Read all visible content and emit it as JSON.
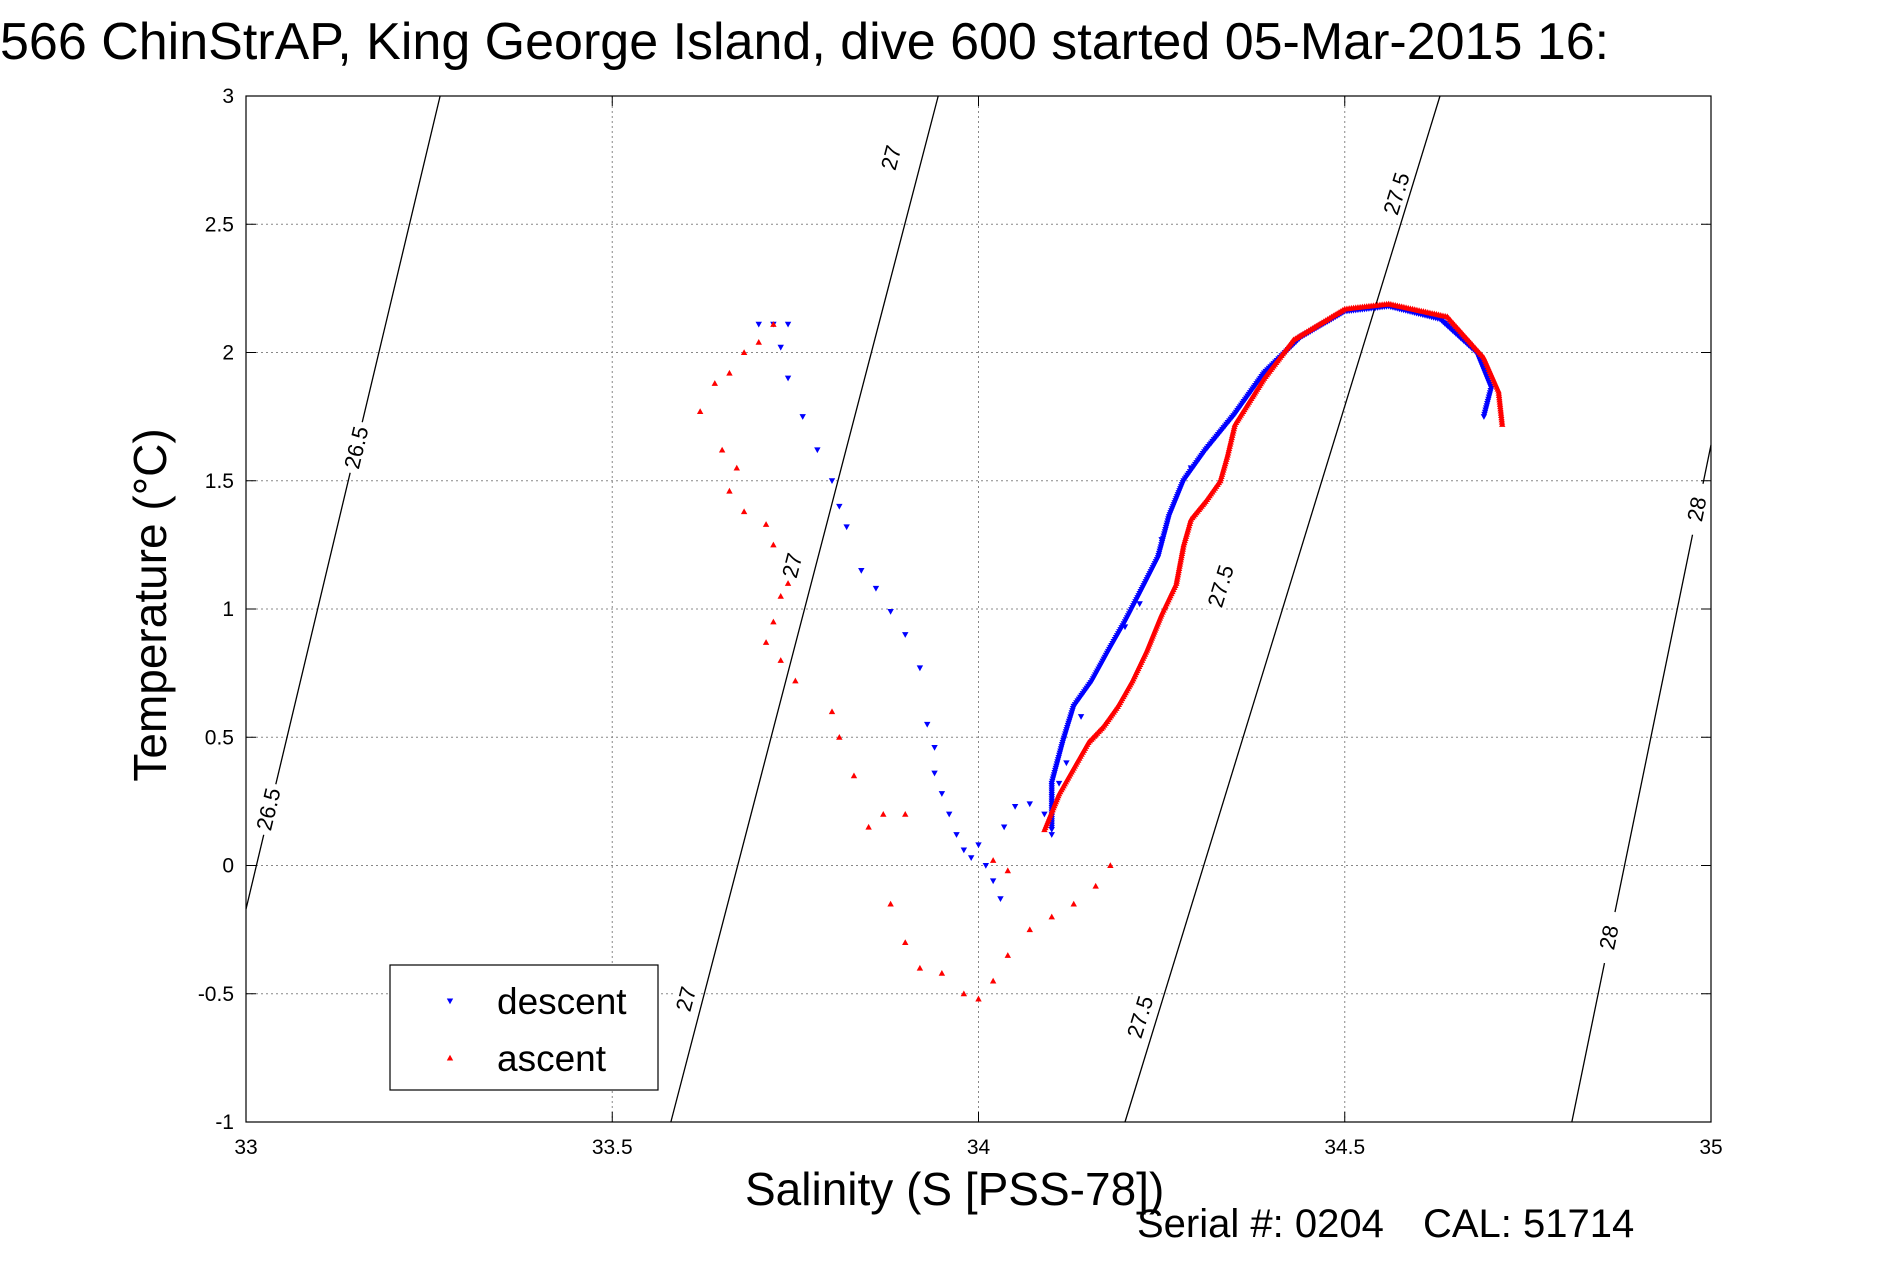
{
  "chart_data": {
    "type": "scatter",
    "title": "566 ChinStrAP, King George Island, dive 600 started 05-Mar-2015 16:",
    "xlabel": "Salinity (S [PSS-78])",
    "ylabel": "Temperature (°C)",
    "xlim": [
      33,
      35
    ],
    "ylim": [
      -1,
      3
    ],
    "xticks": [
      "33",
      "33.5",
      "34",
      "34.5",
      "35"
    ],
    "yticks": [
      "-1",
      "-0.5",
      "0",
      "0.5",
      "1",
      "1.5",
      "2",
      "2.5",
      "3"
    ],
    "grid": true,
    "legend": {
      "position": "bottom-left"
    },
    "contours": [
      {
        "label": "26.5",
        "line": [
          [
            33.0,
            -0.17
          ],
          [
            33.265,
            3.0
          ]
        ],
        "labels_at": [
          [
            33.15,
            1.63
          ],
          [
            33.03,
            0.22
          ]
        ]
      },
      {
        "label": "27",
        "line": [
          [
            33.58,
            -1.0
          ],
          [
            33.945,
            3.0
          ]
        ],
        "labels_at": [
          [
            33.88,
            2.76
          ],
          [
            33.745,
            1.17
          ],
          [
            33.6,
            -0.52
          ]
        ]
      },
      {
        "label": "27.5",
        "line": [
          [
            34.2,
            -1.0
          ],
          [
            34.63,
            3.0
          ]
        ],
        "labels_at": [
          [
            34.57,
            2.62
          ],
          [
            34.33,
            1.09
          ],
          [
            34.22,
            -0.59
          ]
        ]
      },
      {
        "label": "28",
        "line": [
          [
            34.81,
            -1.0
          ],
          [
            35.0,
            1.64
          ]
        ],
        "labels_at": [
          [
            34.98,
            1.39
          ],
          [
            34.86,
            -0.28
          ]
        ]
      }
    ],
    "series": [
      {
        "name": "descent",
        "color": "#0000ff",
        "marker": "triangle-down",
        "curve": [
          [
            34.69,
            1.75
          ],
          [
            34.7,
            1.86
          ],
          [
            34.68,
            2.0
          ],
          [
            34.63,
            2.13
          ],
          [
            34.56,
            2.18
          ],
          [
            34.5,
            2.16
          ],
          [
            34.44,
            2.06
          ],
          [
            34.39,
            1.92
          ],
          [
            34.35,
            1.76
          ],
          [
            34.31,
            1.62
          ],
          [
            34.28,
            1.5
          ],
          [
            34.26,
            1.36
          ],
          [
            34.245,
            1.2
          ],
          [
            34.22,
            1.06
          ],
          [
            34.2,
            0.95
          ],
          [
            34.18,
            0.85
          ],
          [
            34.155,
            0.72
          ],
          [
            34.13,
            0.62
          ],
          [
            34.115,
            0.48
          ],
          [
            34.1,
            0.32
          ],
          [
            34.1,
            0.14
          ]
        ],
        "points": [
          [
            33.72,
            2.11
          ],
          [
            33.74,
            2.11
          ],
          [
            33.7,
            2.11
          ],
          [
            33.73,
            2.02
          ],
          [
            33.74,
            1.9
          ],
          [
            33.76,
            1.75
          ],
          [
            33.78,
            1.62
          ],
          [
            33.8,
            1.5
          ],
          [
            33.81,
            1.4
          ],
          [
            33.82,
            1.32
          ],
          [
            33.84,
            1.15
          ],
          [
            33.86,
            1.08
          ],
          [
            33.88,
            0.99
          ],
          [
            33.9,
            0.9
          ],
          [
            33.92,
            0.77
          ],
          [
            33.93,
            0.55
          ],
          [
            33.94,
            0.46
          ],
          [
            33.94,
            0.36
          ],
          [
            33.95,
            0.28
          ],
          [
            33.96,
            0.2
          ],
          [
            33.97,
            0.12
          ],
          [
            33.98,
            0.06
          ],
          [
            33.99,
            0.03
          ],
          [
            34.0,
            0.08
          ],
          [
            34.01,
            0.0
          ],
          [
            34.02,
            -0.06
          ],
          [
            34.03,
            -0.13
          ],
          [
            34.035,
            0.15
          ],
          [
            34.05,
            0.23
          ],
          [
            34.07,
            0.24
          ],
          [
            34.09,
            0.2
          ],
          [
            34.1,
            0.12
          ],
          [
            34.11,
            0.32
          ],
          [
            34.12,
            0.4
          ],
          [
            34.14,
            0.58
          ],
          [
            34.2,
            0.93
          ],
          [
            34.22,
            1.02
          ],
          [
            34.25,
            1.27
          ],
          [
            34.29,
            1.55
          ]
        ]
      },
      {
        "name": "ascent",
        "color": "#ff0000",
        "marker": "triangle-up",
        "curve": [
          [
            34.715,
            1.72
          ],
          [
            34.71,
            1.85
          ],
          [
            34.69,
            1.98
          ],
          [
            34.64,
            2.14
          ],
          [
            34.56,
            2.19
          ],
          [
            34.5,
            2.17
          ],
          [
            34.43,
            2.05
          ],
          [
            34.39,
            1.9
          ],
          [
            34.35,
            1.72
          ],
          [
            34.34,
            1.6
          ],
          [
            34.33,
            1.5
          ],
          [
            34.31,
            1.42
          ],
          [
            34.29,
            1.35
          ],
          [
            34.28,
            1.25
          ],
          [
            34.27,
            1.1
          ],
          [
            34.25,
            0.98
          ],
          [
            34.23,
            0.84
          ],
          [
            34.21,
            0.72
          ],
          [
            34.19,
            0.62
          ],
          [
            34.17,
            0.54
          ],
          [
            34.15,
            0.48
          ],
          [
            34.13,
            0.38
          ],
          [
            34.11,
            0.28
          ],
          [
            34.09,
            0.14
          ]
        ],
        "points": [
          [
            33.72,
            2.11
          ],
          [
            33.7,
            2.04
          ],
          [
            33.68,
            2.0
          ],
          [
            33.66,
            1.92
          ],
          [
            33.64,
            1.88
          ],
          [
            33.62,
            1.77
          ],
          [
            33.65,
            1.62
          ],
          [
            33.67,
            1.55
          ],
          [
            33.66,
            1.46
          ],
          [
            33.68,
            1.38
          ],
          [
            33.71,
            1.33
          ],
          [
            33.72,
            1.25
          ],
          [
            33.74,
            1.1
          ],
          [
            33.73,
            1.05
          ],
          [
            33.72,
            0.95
          ],
          [
            33.71,
            0.87
          ],
          [
            33.73,
            0.8
          ],
          [
            33.75,
            0.72
          ],
          [
            33.8,
            0.6
          ],
          [
            33.81,
            0.5
          ],
          [
            33.83,
            0.35
          ],
          [
            33.85,
            0.15
          ],
          [
            33.87,
            0.2
          ],
          [
            33.9,
            0.2
          ],
          [
            33.88,
            -0.15
          ],
          [
            33.9,
            -0.3
          ],
          [
            33.92,
            -0.4
          ],
          [
            33.95,
            -0.42
          ],
          [
            33.98,
            -0.5
          ],
          [
            34.0,
            -0.52
          ],
          [
            34.02,
            -0.45
          ],
          [
            34.04,
            -0.35
          ],
          [
            34.07,
            -0.25
          ],
          [
            34.1,
            -0.2
          ],
          [
            34.13,
            -0.15
          ],
          [
            34.16,
            -0.08
          ],
          [
            34.18,
            0.0
          ],
          [
            34.02,
            0.02
          ],
          [
            34.04,
            -0.02
          ]
        ]
      }
    ]
  },
  "footer": {
    "serial": "Serial #: 0204",
    "cal": "CAL: 51714"
  }
}
